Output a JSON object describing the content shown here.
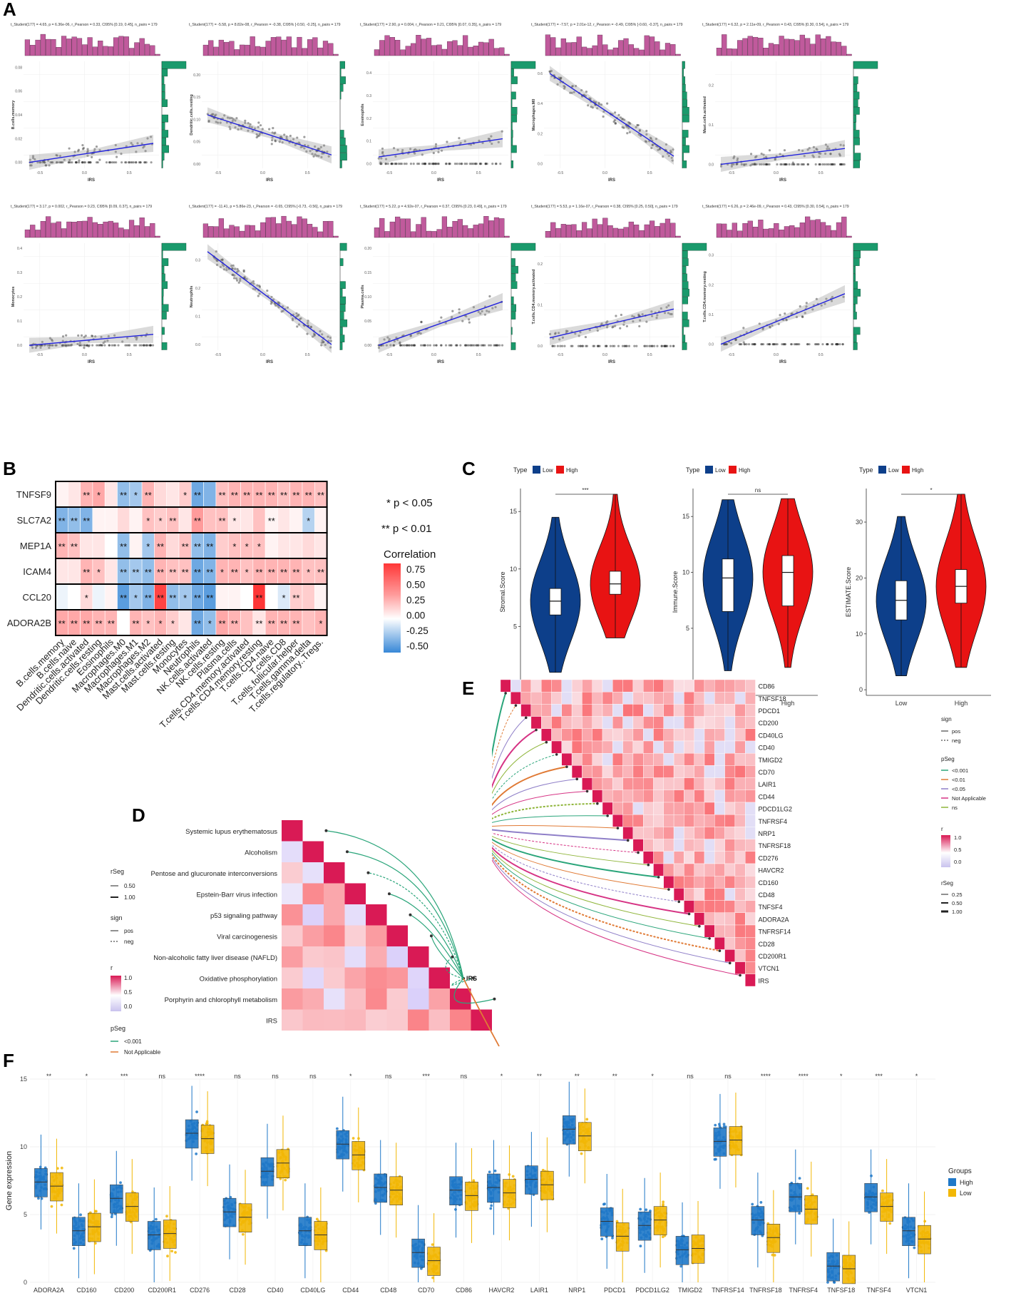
{
  "panel_labels": {
    "A": "A",
    "B": "B",
    "C": "C",
    "D": "D",
    "E": "E",
    "F": "F"
  },
  "colors": {
    "hist_pink": "#c05a9c",
    "hist_green": "#1a9a6c",
    "fit_line": "#2222dd",
    "low_blue": "#0d3f8a",
    "high_red": "#e81313",
    "corr_high": "#e63030",
    "corr_low": "#3a7fc0",
    "pink_max": "#d91a55",
    "f_high": "#1f78c8",
    "f_low": "#f2b705"
  },
  "chart_data": [
    {
      "panel": "A",
      "type": "scatter",
      "xlabel": "IRS",
      "plots": [
        {
          "ylabel": "B.cells.memory",
          "subtitle": "t_Student(177) = 4.65, p = 6.36e-06, r_Pearson = 0.33, CI95% [0.19, 0.45], n_pairs = 179",
          "yticks": [
            "0.00",
            "0.02",
            "0.04",
            "0.06",
            "0.08"
          ],
          "ylim": [
            -0.005,
            0.085
          ],
          "fit": [
            0.0,
            0.016
          ],
          "trend": 0.55
        },
        {
          "ylabel": "Dendritic.cells.resting",
          "subtitle": "t_Student(177) = -5.58, p = 8.82e-08, r_Pearson = -0.38, CI95% [-0.50, -0.25], n_pairs = 179",
          "yticks": [
            "0.00",
            "0.05",
            "0.10",
            "0.15",
            "0.20"
          ],
          "ylim": [
            -0.01,
            0.23
          ],
          "fit": [
            0.11,
            0.02
          ],
          "trend": -0.5
        },
        {
          "ylabel": "Eosinophils",
          "subtitle": "t_Student(177) = 2.90, p = 0.004, r_Pearson = 0.21, CI95% [0.07, 0.35], n_pairs = 179",
          "yticks": [
            "0.0",
            "0.1",
            "0.2",
            "0.3",
            "0.4"
          ],
          "ylim": [
            -0.02,
            0.45
          ],
          "fit": [
            0.03,
            0.11
          ],
          "trend": 0.3
        },
        {
          "ylabel": "Macrophages.M0",
          "subtitle": "t_Student(177) = -7.57, p = 2.01e-12, r_Pearson = -0.49, CI95% [-0.60, -0.37], n_pairs = 179",
          "yticks": [
            "0.0",
            "0.2",
            "0.4",
            "0.6"
          ],
          "ylim": [
            -0.03,
            0.68
          ],
          "fit": [
            0.6,
            0.05
          ],
          "trend": -0.8
        },
        {
          "ylabel": "Mast.cells.activated",
          "subtitle": "t_Student(177) = 6.32, p = 2.11e-09, r_Pearson = 0.43, CI95% [0.30, 0.54], n_pairs = 179",
          "yticks": [
            "0.0",
            "0.1",
            "0.2"
          ],
          "ylim": [
            -0.01,
            0.26
          ],
          "fit": [
            0.0,
            0.04
          ],
          "trend": 0.4
        },
        {
          "ylabel": "Monocytes",
          "subtitle": "t_Student(177) = 3.17, p = 0.002, r_Pearson = 0.23, CI95% [0.09, 0.37], n_pairs = 179",
          "yticks": [
            "0.0",
            "0.1",
            "0.2",
            "0.3",
            "0.4"
          ],
          "ylim": [
            -0.02,
            0.42
          ],
          "fit": [
            0.0,
            0.045
          ],
          "trend": 0.3
        },
        {
          "ylabel": "Neutrophils",
          "subtitle": "t_Student(177) = -11.41, p = 5.86e-23, r_Pearson = -0.65, CI95% [-0.73, -0.56], n_pairs = 179",
          "yticks": [
            "0.0",
            "0.1",
            "0.2",
            "0.3"
          ],
          "ylim": [
            -0.02,
            0.36
          ],
          "fit": [
            0.33,
            0.0
          ],
          "trend": -1
        },
        {
          "ylabel": "Plasma.cells",
          "subtitle": "t_Student(177) = 5.22, p = 4.92e-07, r_Pearson = 0.37, CI95% [0.23, 0.49], n_pairs = 179",
          "yticks": [
            "0.00",
            "0.05",
            "0.10",
            "0.15",
            "0.20"
          ],
          "ylim": [
            -0.01,
            0.21
          ],
          "fit": [
            0.0,
            0.09
          ],
          "trend": 0.6
        },
        {
          "ylabel": "T.cells.CD4.memory.activated",
          "subtitle": "t_Student(177) = 5.53, p = 1.16e-07, r_Pearson = 0.38, CI95% [0.25, 0.50], n_pairs = 179",
          "yticks": [
            "0.0",
            "0.1",
            "0.2"
          ],
          "ylim": [
            -0.01,
            0.25
          ],
          "fit": [
            0.02,
            0.09
          ],
          "trend": 0.55
        },
        {
          "ylabel": "T.cells.CD4.memory.resting",
          "subtitle": "t_Student(177) = 6.26, p = 2.46e-09, r_Pearson = 0.43, CI95% [0.30, 0.54], n_pairs = 179",
          "yticks": [
            "0.0",
            "0.1",
            "0.2",
            "0.3"
          ],
          "ylim": [
            -0.02,
            0.34
          ],
          "fit": [
            0.0,
            0.17
          ],
          "trend": 0.7
        }
      ],
      "xticks": [
        "-0.5",
        "0.0",
        "0.5"
      ]
    },
    {
      "panel": "B",
      "type": "heatmap",
      "rows": [
        "TNFSF9",
        "SLC7A2",
        "MEP1A",
        "ICAM4",
        "CCL20",
        "ADORA2B"
      ],
      "columns": [
        "B.cells.memory",
        "B.cells.naive",
        "Dendritic.cells.activated",
        "Dendritic.cells.resting",
        "Eosinophils",
        "Macrophages.M0",
        "Macrophages.M1",
        "Macrophages.M2",
        "Mast.cells.activated",
        "Mast.cells.resting",
        "Monocytes",
        "Neutrophils",
        "NK.cells.activated",
        "NK.cells.resting",
        "Plasma.cells",
        "T.cells.CD4.memory.activated",
        "T.cells.CD4.memory.resting",
        "T.cells.CD4.naive",
        "T.cells.CD8",
        "T.cells.follicular.helper",
        "T.cells.gamma.delta",
        "T.cells.regulatory..Tregs."
      ],
      "values": [
        [
          0.05,
          0.1,
          0.3,
          0.35,
          0.1,
          -0.3,
          -0.25,
          0.3,
          0.15,
          0.1,
          0.2,
          -0.4,
          -0.35,
          0.25,
          0.3,
          0.3,
          0.3,
          0.3,
          0.25,
          0.3,
          0.3,
          0.25
        ],
        [
          -0.35,
          -0.3,
          -0.35,
          0.05,
          0.05,
          0.15,
          0.05,
          0.25,
          0.2,
          0.25,
          0.1,
          0.4,
          0.25,
          0.25,
          0.1,
          0.1,
          0.25,
          0.05,
          0.1,
          0.05,
          -0.2,
          0.05
        ],
        [
          0.3,
          0.25,
          0.1,
          0.1,
          0.0,
          -0.3,
          0.05,
          -0.25,
          0.3,
          0.15,
          0.25,
          -0.3,
          -0.35,
          0.2,
          0.25,
          0.25,
          0.25,
          0.05,
          0.1,
          0.1,
          0.15,
          0.1
        ],
        [
          0.1,
          0.1,
          0.3,
          0.25,
          0.1,
          -0.3,
          -0.25,
          -0.3,
          0.3,
          0.25,
          0.25,
          -0.4,
          -0.35,
          0.3,
          0.3,
          0.25,
          0.3,
          0.3,
          0.3,
          0.3,
          0.25,
          0.25
        ],
        [
          -0.05,
          0.0,
          0.15,
          -0.05,
          0.05,
          -0.45,
          -0.25,
          -0.35,
          0.75,
          -0.3,
          -0.25,
          -0.4,
          -0.45,
          0.05,
          0.05,
          0.0,
          0.85,
          0.0,
          -0.1,
          0.2,
          0.2,
          0.05
        ],
        [
          0.35,
          0.35,
          0.35,
          0.3,
          0.3,
          0.0,
          0.3,
          0.25,
          0.3,
          0.2,
          0.1,
          -0.4,
          -0.3,
          0.35,
          0.3,
          0.25,
          0.1,
          0.3,
          0.3,
          0.3,
          0.25,
          0.3
        ]
      ],
      "stars": [
        [
          "",
          "",
          "**",
          "*",
          "",
          "**",
          "*",
          "**",
          "",
          "",
          "*",
          "**",
          "",
          "**",
          "**",
          "**",
          "**",
          "**",
          "**",
          "**",
          "**",
          "**"
        ],
        [
          "**",
          "**",
          "**",
          "",
          "",
          "",
          "",
          "*",
          "*",
          "**",
          "",
          "**",
          "",
          "**",
          "*",
          "",
          "",
          "**",
          "",
          "",
          "*",
          ""
        ],
        [
          "**",
          "**",
          "",
          "",
          "",
          "**",
          "",
          "*",
          "**",
          "",
          "**",
          "**",
          "**",
          "",
          "*",
          "*",
          "*",
          "",
          "",
          "",
          "",
          ""
        ],
        [
          "",
          "",
          "**",
          "*",
          "",
          "**",
          "**",
          "**",
          "**",
          "**",
          "**",
          "**",
          "**",
          "*",
          "**",
          "*",
          "**",
          "**",
          "**",
          "**",
          "*",
          "**"
        ],
        [
          "",
          "",
          "*",
          "",
          "",
          "**",
          "*",
          "**",
          "**",
          "**",
          "*",
          "**",
          "**",
          "",
          "",
          "",
          "**",
          "",
          "*",
          "**",
          "",
          ""
        ],
        [
          "**",
          "**",
          "**",
          "**",
          "**",
          "",
          "**",
          "*",
          "*",
          "*",
          "",
          "**",
          "*",
          "**",
          "**",
          "",
          "**",
          "**",
          "**",
          "**",
          "",
          "*"
        ]
      ],
      "legend_title": "Correlation",
      "legend_ticks": [
        "0.75",
        "0.50",
        "0.25",
        "0.00",
        "-0.25",
        "-0.50"
      ],
      "sig_notes": [
        "* p < 0.05",
        "** p < 0.01"
      ]
    },
    {
      "panel": "C",
      "type": "violin",
      "legend_title": "Type",
      "legend_items": [
        "Low",
        "High"
      ],
      "categories": [
        "Low",
        "High"
      ],
      "plots": [
        {
          "ylabel": "Stromal.Score",
          "yticks": [
            "0",
            "5",
            "10",
            "15"
          ],
          "ylim": [
            -1,
            17
          ],
          "sig": "***",
          "low": {
            "min": 1.0,
            "q1": 6.0,
            "median": 7.2,
            "q3": 8.3,
            "max": 14.5
          },
          "high": {
            "min": 4.0,
            "q1": 7.8,
            "median": 8.7,
            "q3": 9.8,
            "max": 16.5
          }
        },
        {
          "ylabel": "Immune.Score",
          "yticks": [
            "0",
            "5",
            "10",
            "15"
          ],
          "ylim": [
            -1,
            17.5
          ],
          "sig": "ns",
          "low": {
            "min": 1.2,
            "q1": 6.5,
            "median": 9.5,
            "q3": 11.2,
            "max": 16.5
          },
          "high": {
            "min": 1.5,
            "q1": 7.0,
            "median": 10.0,
            "q3": 11.5,
            "max": 16.6
          }
        },
        {
          "ylabel": "ESTIMATE.Score",
          "yticks": [
            "0",
            "10",
            "20",
            "30"
          ],
          "ylim": [
            -1,
            36
          ],
          "sig": "*",
          "low": {
            "min": 2.5,
            "q1": 12.5,
            "median": 16.0,
            "q3": 19.5,
            "max": 31.0
          },
          "high": {
            "min": 4.0,
            "q1": 15.5,
            "median": 18.5,
            "q3": 21.5,
            "max": 35.0
          }
        }
      ]
    },
    {
      "panel": "D",
      "type": "heatmap",
      "rows": [
        "Systemic lupus erythematosus",
        "Alcoholism",
        "Pentose and glucuronate interconversions",
        "Epstein-Barr virus infection",
        "p53 signaling pathway",
        "Viral carcinogenesis",
        "Non-alcoholic fatty liver disease (NAFLD)",
        "Oxidative phosphorylation",
        "Porphyrin and chlorophyll metabolism",
        "IRS"
      ],
      "center_label": "IRS",
      "legend": {
        "rSeg_title": "rSeg",
        "rSeg_items": [
          "0.50",
          "1.00"
        ],
        "sign_title": "sign",
        "sign_items": [
          "pos",
          "neg"
        ],
        "r_title": "r",
        "r_ticks": [
          "1.0",
          "0.5",
          "0.0"
        ],
        "pSeg_title": "pSeg",
        "pSeg_items": [
          "<0.001",
          "Not Applicable"
        ]
      }
    },
    {
      "panel": "E",
      "type": "heatmap",
      "rows": [
        "CD86",
        "TNFSF18",
        "PDCD1",
        "CD200",
        "CD40LG",
        "CD40",
        "TMIGD2",
        "CD70",
        "LAIR1",
        "CD44",
        "PDCD1LG2",
        "TNFRSF4",
        "NRP1",
        "TNFRSF18",
        "CD276",
        "HAVCR2",
        "CD160",
        "CD48",
        "TNFSF4",
        "ADORA2A",
        "TNFRSF14",
        "CD28",
        "CD200R1",
        "VTCN1",
        "IRS"
      ],
      "center_label": "IRS",
      "legend": {
        "sign_title": "sign",
        "sign_items": [
          "pos",
          "neg"
        ],
        "pSeg_title": "pSeg",
        "pSeg_items": [
          "<0.001",
          "<0.01",
          "<0.05",
          "Not Applicable",
          "ns"
        ],
        "r_title": "r",
        "r_ticks": [
          "1.0",
          "0.5",
          "0.0"
        ],
        "rSeg_title": "rSeg",
        "rSeg_items": [
          "0.25",
          "0.50",
          "1.00"
        ]
      }
    },
    {
      "panel": "F",
      "type": "box",
      "ylabel": "Gene expression",
      "yticks": [
        "0",
        "5",
        "10",
        "15"
      ],
      "ylim": [
        0,
        15
      ],
      "legend_title": "Groups",
      "legend_items": [
        "High",
        "Low"
      ],
      "categories": [
        "ADORA2A",
        "CD160",
        "CD200",
        "CD200R1",
        "CD276",
        "CD28",
        "CD40",
        "CD40LG",
        "CD44",
        "CD48",
        "CD70",
        "CD86",
        "HAVCR2",
        "LAIR1",
        "NRP1",
        "PDCD1",
        "PDCD1LG2",
        "TMIGD2",
        "TNFRSF14",
        "TNFRSF18",
        "TNFRSF4",
        "TNFSF18",
        "TNFSF4",
        "VTCN1"
      ],
      "sig": [
        "**",
        "*",
        "***",
        "ns",
        "****",
        "ns",
        "ns",
        "ns",
        "*",
        "ns",
        "***",
        "ns",
        "*",
        "**",
        "**",
        "**",
        "*",
        "ns",
        "ns",
        "****",
        "****",
        "*",
        "***",
        "*"
      ],
      "high_median": [
        7.4,
        3.8,
        6.2,
        3.5,
        11.0,
        5.2,
        8.2,
        3.8,
        10.2,
        7.0,
        2.2,
        6.8,
        7.0,
        7.6,
        11.3,
        4.5,
        4.2,
        2.4,
        10.4,
        4.6,
        6.3,
        1.2,
        6.3,
        3.8
      ],
      "low_median": [
        7.1,
        4.1,
        5.6,
        3.6,
        10.6,
        4.8,
        8.8,
        3.5,
        9.4,
        6.8,
        1.6,
        6.4,
        6.6,
        7.2,
        10.8,
        3.4,
        4.6,
        2.5,
        10.5,
        3.3,
        5.4,
        1.0,
        5.6,
        3.2
      ]
    }
  ]
}
